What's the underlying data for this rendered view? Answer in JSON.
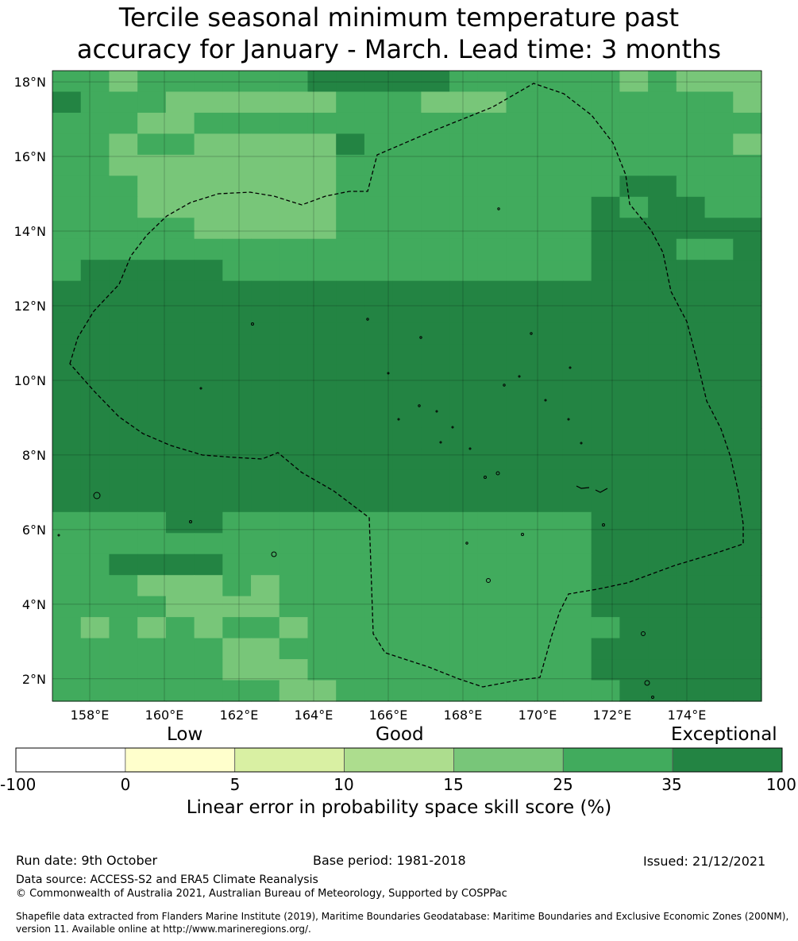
{
  "title_line1": "Tercile seasonal minimum temperature past",
  "title_line2": "accuracy for January - March. Lead time: 3 months",
  "map": {
    "lon_labels": [
      "158°E",
      "160°E",
      "162°E",
      "164°E",
      "166°E",
      "168°E",
      "170°E",
      "172°E",
      "174°E"
    ],
    "lat_labels": [
      "18°N",
      "16°N",
      "14°N",
      "12°N",
      "10°N",
      "8°N",
      "6°N",
      "4°N",
      "2°N"
    ],
    "lon_values": [
      158,
      160,
      162,
      164,
      166,
      168,
      170,
      172,
      174
    ],
    "lat_values": [
      18,
      16,
      14,
      12,
      10,
      8,
      6,
      4,
      2
    ],
    "lon_range": [
      157,
      176
    ],
    "lat_range": [
      1.4,
      18.3
    ]
  },
  "colorbar": {
    "category_labels": [
      "Low",
      "Good",
      "Exceptional"
    ],
    "tick_labels": [
      "-100",
      "0",
      "5",
      "10",
      "15",
      "25",
      "35",
      "100"
    ],
    "colors": [
      "#ffffff",
      "#ffffcc",
      "#d9f0a3",
      "#addd8e",
      "#78c679",
      "#41ab5d",
      "#238443"
    ],
    "axis_label": "Linear error in probability space skill score (%)"
  },
  "footer": {
    "run_date": "Run date: 9th October",
    "base_period": "Base period: 1981-2018",
    "issued": "Issued: 21/12/2021",
    "data_source": "Data source: ACCESS-S2 and ERA5 Climate Reanalysis",
    "copyright": "© Commonwealth of Australia 2021, Australian Bureau of Meteorology, Supported by COSPPac",
    "shapefile_line1": "Shapefile data extracted from Flanders Marine Institute (2019), Maritime Boundaries Geodatabase: Maritime Boundaries and Exclusive Economic Zones (200NM),",
    "shapefile_line2": "version 11. Available online at http://www.marineregions.org/."
  }
}
